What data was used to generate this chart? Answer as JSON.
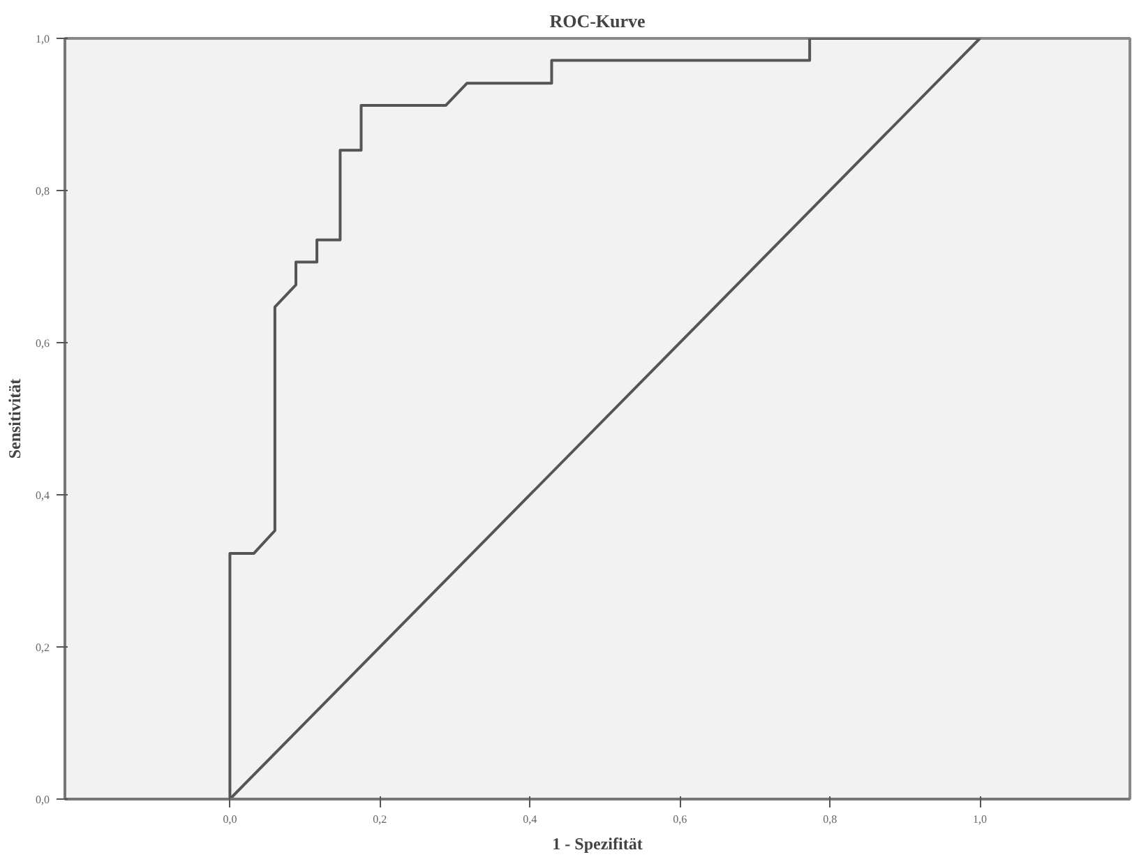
{
  "chart_data": {
    "type": "line",
    "title": "ROC-Kurve",
    "xlabel": "1 - Spezifität",
    "ylabel": "Sensitivität",
    "xlim": [
      -0.22,
      1.2
    ],
    "ylim": [
      0,
      1
    ],
    "xticks": [
      {
        "value": 0,
        "label": "0,0"
      },
      {
        "value": 0.2,
        "label": "0,2"
      },
      {
        "value": 0.4,
        "label": "0,4"
      },
      {
        "value": 0.6,
        "label": "0,6"
      },
      {
        "value": 0.8,
        "label": "0,8"
      },
      {
        "value": 1.0,
        "label": "1,0"
      }
    ],
    "yticks": [
      {
        "value": 0,
        "label": "0,0"
      },
      {
        "value": 0.2,
        "label": "0,2"
      },
      {
        "value": 0.4,
        "label": "0,4"
      },
      {
        "value": 0.6,
        "label": "0,6"
      },
      {
        "value": 0.8,
        "label": "0,8"
      },
      {
        "value": 1.0,
        "label": "1,0"
      }
    ],
    "grid": false,
    "marker": "none",
    "line_style": "solid",
    "series": [
      {
        "color": "#555555",
        "x": [
          0,
          0,
          0.032,
          0.06,
          0.06,
          0.088,
          0.088,
          0.116,
          0.116,
          0.147,
          0.147,
          0.175,
          0.175,
          0.288,
          0.316,
          0.429,
          0.429,
          0.773,
          0.773,
          1.0
        ],
        "values": [
          0,
          0.323,
          0.323,
          0.353,
          0.647,
          0.676,
          0.706,
          0.706,
          0.735,
          0.735,
          0.853,
          0.853,
          0.912,
          0.912,
          0.941,
          0.941,
          0.971,
          0.971,
          1.0,
          1.0
        ]
      },
      {
        "color": "#555555",
        "x": [
          0,
          1
        ],
        "values": [
          0,
          1
        ]
      }
    ]
  }
}
